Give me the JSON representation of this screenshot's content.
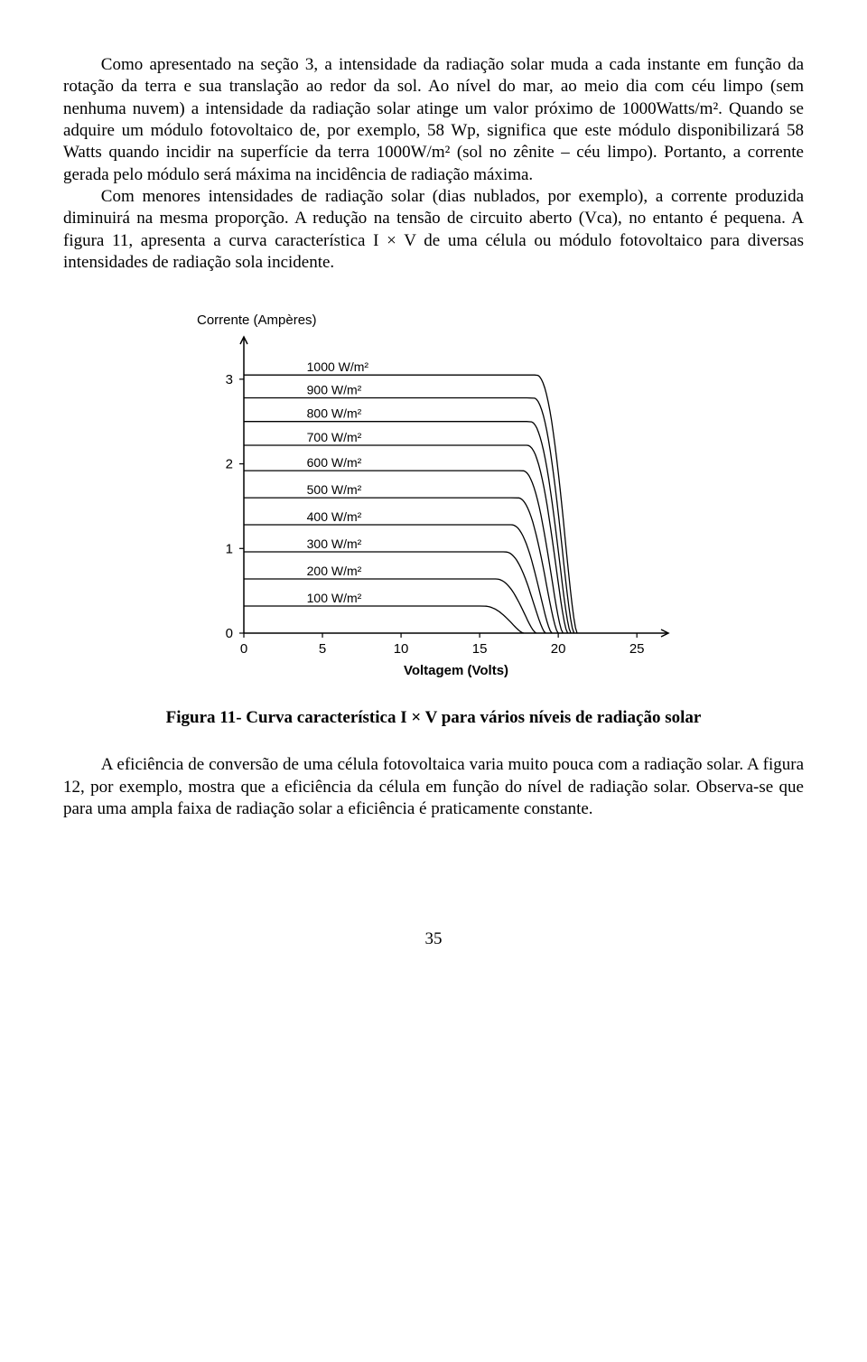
{
  "paragraphs": {
    "p1": "Como apresentado na seção 3, a intensidade da radiação solar muda a cada instante em função da rotação da terra e sua translação ao redor da sol. Ao nível do mar, ao meio dia com céu limpo (sem nenhuma nuvem) a intensidade da radiação solar atinge um valor próximo de 1000Watts/m². Quando se adquire um módulo fotovoltaico de, por exemplo, 58 Wp, significa que este módulo disponibilizará 58 Watts quando incidir na superfície da terra 1000W/m² (sol no zênite – céu limpo). Portanto, a corrente gerada pelo módulo será máxima na incidência de radiação máxima.",
    "p2": "Com menores intensidades de radiação solar (dias nublados, por exemplo), a corrente produzida diminuirá na mesma proporção. A redução na tensão de circuito aberto (Vca), no entanto é pequena. A figura 11, apresenta a curva característica I × V de uma  célula ou módulo fotovoltaico para diversas intensidades de radiação sola incidente.",
    "p3": "A eficiência de conversão de uma célula fotovoltaica varia muito pouca com a radiação solar. A figura 12, por exemplo, mostra que a eficiência da célula em função do nível de radiação solar. Observa-se que para uma ampla faixa de radiação solar a eficiência é praticamente constante."
  },
  "figure": {
    "caption": "Figura 11- Curva característica I × V para vários níveis de radiação solar",
    "y_axis_label": "Corrente (Ampères)",
    "x_axis_label": "Voltagem (Volts)",
    "y_ticks": [
      0,
      1,
      2,
      3
    ],
    "x_ticks": [
      0,
      5,
      10,
      15,
      20,
      25
    ],
    "y_max": 3.5,
    "x_max": 27,
    "axis_color": "#000000",
    "curve_color": "#000000",
    "curve_stroke_width": 1.3,
    "label_fontsize": 15,
    "tick_fontsize": 15,
    "series_label_fontsize": 14,
    "background_color": "#ffffff",
    "series": [
      {
        "label": "1000 W/m²",
        "isc": 3.05,
        "voc": 21.2
      },
      {
        "label": "900 W/m²",
        "isc": 2.78,
        "voc": 21.0
      },
      {
        "label": "800 W/m²",
        "isc": 2.5,
        "voc": 20.8
      },
      {
        "label": "700 W/m²",
        "isc": 2.22,
        "voc": 20.6
      },
      {
        "label": "600 W/m²",
        "isc": 1.92,
        "voc": 20.3
      },
      {
        "label": "500 W/m²",
        "isc": 1.6,
        "voc": 20.0
      },
      {
        "label": "400 W/m²",
        "isc": 1.28,
        "voc": 19.6
      },
      {
        "label": "300 W/m²",
        "isc": 0.96,
        "voc": 19.2
      },
      {
        "label": "200 W/m²",
        "isc": 0.64,
        "voc": 18.6
      },
      {
        "label": "100 W/m²",
        "isc": 0.32,
        "voc": 17.8
      }
    ]
  },
  "page_number": "35"
}
